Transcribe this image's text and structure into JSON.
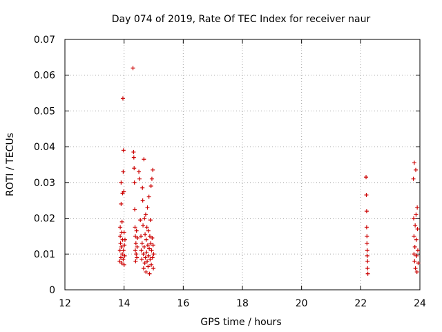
{
  "chart_data": {
    "type": "scatter",
    "title": "Day 074 of 2019, Rate Of TEC Index for receiver naur",
    "xlabel": "GPS time / hours",
    "ylabel": "ROTI / TECUs",
    "xlim": [
      12,
      24
    ],
    "ylim": [
      0,
      0.07
    ],
    "x_ticks": [
      12,
      14,
      16,
      18,
      20,
      22,
      24
    ],
    "y_ticks": [
      0,
      0.01,
      0.02,
      0.03,
      0.04,
      0.05,
      0.06,
      0.07
    ],
    "x_tick_labels": [
      "12",
      "14",
      "16",
      "18",
      "20",
      "22",
      "24"
    ],
    "y_tick_labels": [
      "0",
      "0.01",
      "0.02",
      "0.03",
      "0.04",
      "0.05",
      "0.06",
      "0.07"
    ],
    "grid": true,
    "marker": "+",
    "marker_color": "#cc0000",
    "series": [
      {
        "name": "ROTI",
        "points": [
          [
            13.85,
            0.008
          ],
          [
            13.86,
            0.011
          ],
          [
            13.87,
            0.015
          ],
          [
            13.87,
            0.0175
          ],
          [
            13.88,
            0.013
          ],
          [
            13.89,
            0.009
          ],
          [
            13.9,
            0.024
          ],
          [
            13.9,
            0.03
          ],
          [
            13.91,
            0.012
          ],
          [
            13.92,
            0.016
          ],
          [
            13.92,
            0.0075
          ],
          [
            13.93,
            0.019
          ],
          [
            13.94,
            0.01
          ],
          [
            13.95,
            0.014
          ],
          [
            13.95,
            0.027
          ],
          [
            13.96,
            0.0535
          ],
          [
            13.97,
            0.033
          ],
          [
            13.97,
            0.0085
          ],
          [
            13.98,
            0.039
          ],
          [
            13.98,
            0.011
          ],
          [
            13.99,
            0.0275
          ],
          [
            14.0,
            0.016
          ],
          [
            14.0,
            0.007
          ],
          [
            14.01,
            0.0125
          ],
          [
            14.02,
            0.0095
          ],
          [
            14.03,
            0.014
          ],
          [
            14.3,
            0.062
          ],
          [
            14.32,
            0.0385
          ],
          [
            14.33,
            0.037
          ],
          [
            14.34,
            0.034
          ],
          [
            14.35,
            0.03
          ],
          [
            14.36,
            0.0225
          ],
          [
            14.37,
            0.0175
          ],
          [
            14.38,
            0.015
          ],
          [
            14.38,
            0.011
          ],
          [
            14.39,
            0.008
          ],
          [
            14.4,
            0.013
          ],
          [
            14.41,
            0.01
          ],
          [
            14.42,
            0.0165
          ],
          [
            14.43,
            0.009
          ],
          [
            14.44,
            0.012
          ],
          [
            14.45,
            0.0145
          ],
          [
            14.5,
            0.033
          ],
          [
            14.52,
            0.031
          ],
          [
            14.55,
            0.0195
          ],
          [
            14.57,
            0.015
          ],
          [
            14.58,
            0.011
          ],
          [
            14.6,
            0.0085
          ],
          [
            14.61,
            0.013
          ],
          [
            14.62,
            0.0285
          ],
          [
            14.63,
            0.025
          ],
          [
            14.64,
            0.018
          ],
          [
            14.65,
            0.01
          ],
          [
            14.66,
            0.006
          ],
          [
            14.67,
            0.0365
          ],
          [
            14.68,
            0.012
          ],
          [
            14.69,
            0.02
          ],
          [
            14.7,
            0.0075
          ],
          [
            14.71,
            0.0155
          ],
          [
            14.72,
            0.009
          ],
          [
            14.73,
            0.021
          ],
          [
            14.74,
            0.005
          ],
          [
            14.75,
            0.014
          ],
          [
            14.76,
            0.0105
          ],
          [
            14.77,
            0.0175
          ],
          [
            14.78,
            0.008
          ],
          [
            14.79,
            0.023
          ],
          [
            14.8,
            0.0125
          ],
          [
            14.81,
            0.0065
          ],
          [
            14.82,
            0.0165
          ],
          [
            14.83,
            0.0095
          ],
          [
            14.84,
            0.026
          ],
          [
            14.85,
            0.0115
          ],
          [
            14.86,
            0.0045
          ],
          [
            14.87,
            0.015
          ],
          [
            14.88,
            0.0085
          ],
          [
            14.89,
            0.0195
          ],
          [
            14.9,
            0.013
          ],
          [
            14.91,
            0.029
          ],
          [
            14.92,
            0.007
          ],
          [
            14.93,
            0.011
          ],
          [
            14.94,
            0.031
          ],
          [
            14.95,
            0.0145
          ],
          [
            14.96,
            0.009
          ],
          [
            14.97,
            0.0335
          ],
          [
            14.98,
            0.0125
          ],
          [
            14.99,
            0.006
          ],
          [
            15.0,
            0.01
          ],
          [
            22.18,
            0.0315
          ],
          [
            22.19,
            0.0265
          ],
          [
            22.2,
            0.022
          ],
          [
            22.2,
            0.0175
          ],
          [
            22.21,
            0.015
          ],
          [
            22.21,
            0.013
          ],
          [
            22.22,
            0.011
          ],
          [
            22.22,
            0.0095
          ],
          [
            22.23,
            0.008
          ],
          [
            22.23,
            0.006
          ],
          [
            22.24,
            0.0045
          ],
          [
            23.78,
            0.031
          ],
          [
            23.79,
            0.02
          ],
          [
            23.8,
            0.015
          ],
          [
            23.8,
            0.01
          ],
          [
            23.81,
            0.0355
          ],
          [
            23.82,
            0.008
          ],
          [
            23.83,
            0.012
          ],
          [
            23.84,
            0.018
          ],
          [
            23.85,
            0.006
          ],
          [
            23.86,
            0.0335
          ],
          [
            23.87,
            0.021
          ],
          [
            23.88,
            0.014
          ],
          [
            23.89,
            0.0095
          ],
          [
            23.9,
            0.005
          ],
          [
            23.91,
            0.023
          ],
          [
            23.92,
            0.017
          ],
          [
            23.93,
            0.011
          ],
          [
            23.94,
            0.0075
          ]
        ]
      }
    ]
  }
}
